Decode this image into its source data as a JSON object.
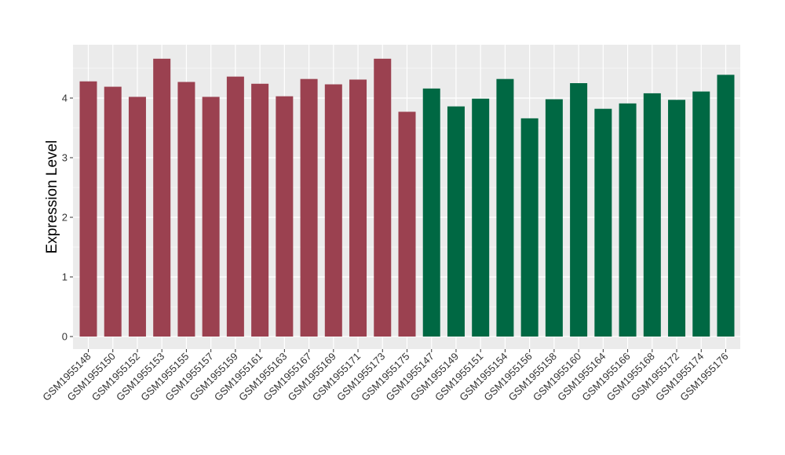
{
  "chart_data": {
    "type": "bar",
    "title": "",
    "xlabel": "",
    "ylabel": "Expression Level",
    "ylim": [
      0,
      4.85
    ],
    "yticks": [
      0,
      1,
      2,
      3,
      4
    ],
    "grid": true,
    "colors": {
      "group1": "#9b4150",
      "group2": "#006843",
      "panel": "#ebebeb",
      "grid": "#ffffff"
    },
    "categories": [
      "GSM1955148",
      "GSM1955150",
      "GSM1955152",
      "GSM1955153",
      "GSM1955155",
      "GSM1955157",
      "GSM1955159",
      "GSM1955161",
      "GSM1955163",
      "GSM1955167",
      "GSM1955169",
      "GSM1955171",
      "GSM1955173",
      "GSM1955175",
      "GSM1955147",
      "GSM1955149",
      "GSM1955151",
      "GSM1955154",
      "GSM1955156",
      "GSM1955158",
      "GSM1955160",
      "GSM1955164",
      "GSM1955166",
      "GSM1955168",
      "GSM1955172",
      "GSM1955174",
      "GSM1955176"
    ],
    "values": [
      4.28,
      4.19,
      4.02,
      4.66,
      4.27,
      4.02,
      4.36,
      4.24,
      4.03,
      4.32,
      4.23,
      4.31,
      4.66,
      3.77,
      4.16,
      3.86,
      3.99,
      4.32,
      3.66,
      3.98,
      4.25,
      3.82,
      3.91,
      4.08,
      3.97,
      4.11,
      4.39
    ],
    "groups": [
      "group1",
      "group1",
      "group1",
      "group1",
      "group1",
      "group1",
      "group1",
      "group1",
      "group1",
      "group1",
      "group1",
      "group1",
      "group1",
      "group1",
      "group2",
      "group2",
      "group2",
      "group2",
      "group2",
      "group2",
      "group2",
      "group2",
      "group2",
      "group2",
      "group2",
      "group2",
      "group2"
    ]
  }
}
